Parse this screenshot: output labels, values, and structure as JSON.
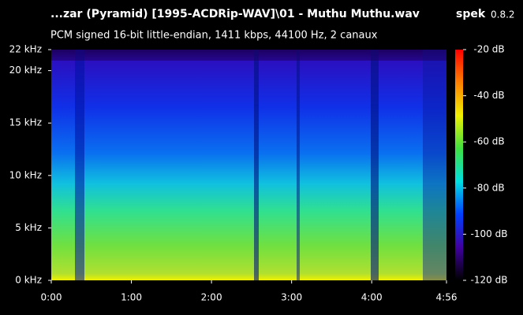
{
  "chart_data": {
    "type": "spectrogram",
    "title": "...zar (Pyramid) [1995-ACDRip-WAV]\\01 - Muthu Muthu.wav",
    "subtitle": "PCM signed 16-bit little-endian, 1411 kbps, 44100 Hz, 2 canaux",
    "app_name": "spek",
    "app_version": "0.8.2",
    "xlim": [
      0,
      296
    ],
    "xticks": [
      {
        "value": 0,
        "label": "0:00"
      },
      {
        "value": 60,
        "label": "1:00"
      },
      {
        "value": 120,
        "label": "2:00"
      },
      {
        "value": 180,
        "label": "3:00"
      },
      {
        "value": 240,
        "label": "4:00"
      },
      {
        "value": 296,
        "label": "4:56"
      }
    ],
    "ylim": [
      0,
      22
    ],
    "yticks": [
      {
        "value": 0,
        "label": "0 kHz"
      },
      {
        "value": 5,
        "label": "5 kHz"
      },
      {
        "value": 10,
        "label": "10 kHz"
      },
      {
        "value": 15,
        "label": "15 kHz"
      },
      {
        "value": 20,
        "label": "20 kHz"
      },
      {
        "value": 22,
        "label": "22 kHz"
      }
    ],
    "colorbar_lim": [
      -120,
      -20
    ],
    "colorbar_ticks": [
      {
        "value": -20,
        "label": "-20 dB"
      },
      {
        "value": -40,
        "label": "-40 dB"
      },
      {
        "value": -60,
        "label": "-60 dB"
      },
      {
        "value": -80,
        "label": "-80 dB"
      },
      {
        "value": -100,
        "label": "-100 dB"
      },
      {
        "value": -120,
        "label": "-120 dB"
      }
    ],
    "colormap": [
      "#ff0000",
      "#ff8000",
      "#f0f000",
      "#40e040",
      "#00e0e0",
      "#0040ff",
      "#4000a0",
      "#000000"
    ]
  }
}
